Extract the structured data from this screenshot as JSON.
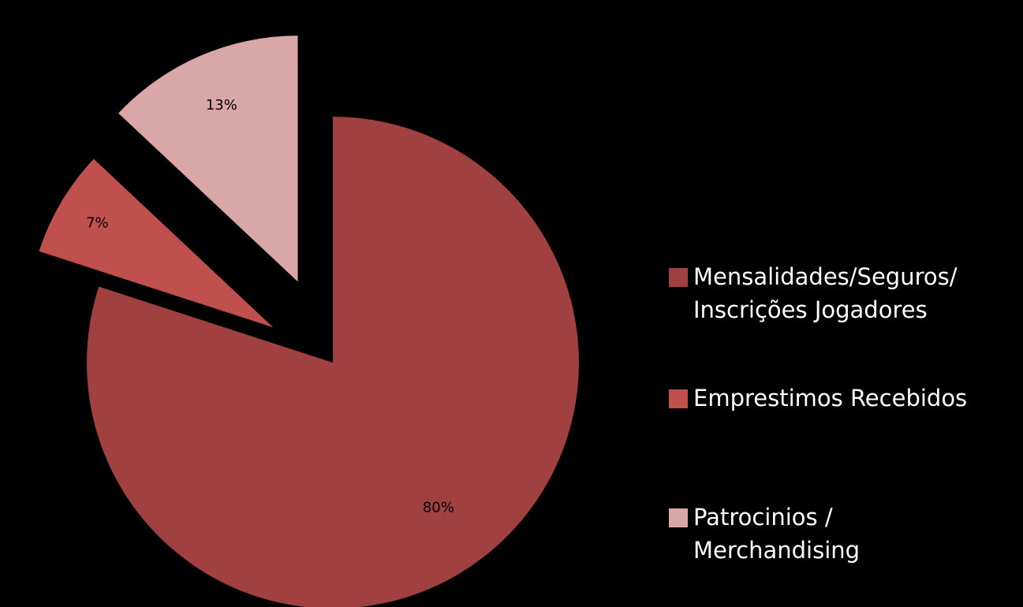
{
  "chart_data": {
    "type": "pie",
    "slices": [
      {
        "name": "Mensalidades/Seguros/ Inscrições Jogadores",
        "value": 80,
        "label": "80%",
        "color": "#a04040"
      },
      {
        "name": "Emprestimos Recebidos",
        "value": 7,
        "label": "7%",
        "color": "#c0504d"
      },
      {
        "name": "Patrocinios / Merchandising",
        "value": 13,
        "label": "13%",
        "color": "#d9a7a6"
      }
    ],
    "legend": {
      "placement": "right",
      "entries": [
        {
          "text": "Mensalidades/Seguros/\nInscrições Jogadores",
          "color": "#a04040"
        },
        {
          "text": "Emprestimos Recebidos",
          "color": "#c0504d"
        },
        {
          "text": "Patrocinios /\nMerchandising",
          "color": "#d9a7a6"
        }
      ]
    },
    "exploded": true,
    "background": "#000000"
  }
}
